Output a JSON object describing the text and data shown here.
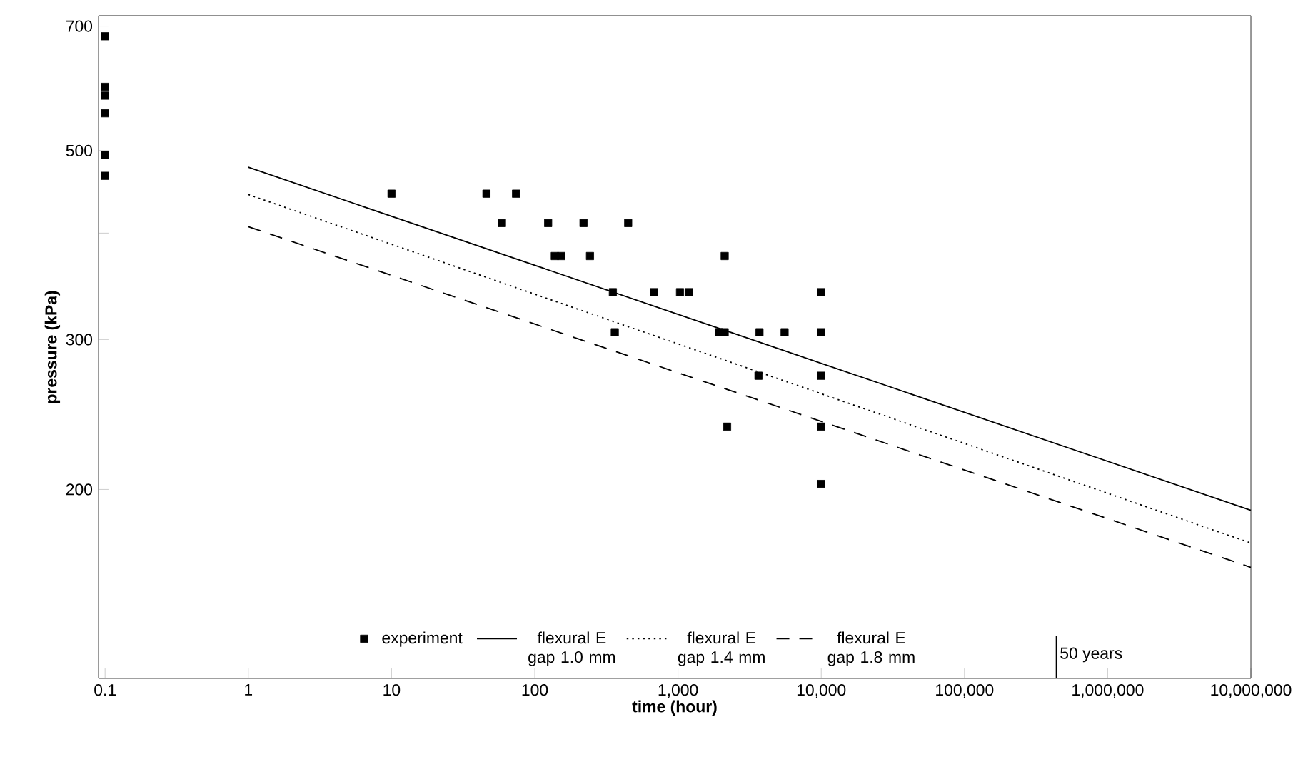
{
  "chart_data": {
    "type": "scatter",
    "xlabel": "time (hour)",
    "ylabel": "pressure (kPa)",
    "log": "xy",
    "xlim": [
      0.09,
      10000000
    ],
    "ylim": [
      120,
      720
    ],
    "xticks": [
      0.1,
      1,
      10,
      100,
      {
        "value": 1000,
        "label": "1,000"
      },
      {
        "value": 10000,
        "label": "10,000"
      },
      {
        "value": 100000,
        "label": "100,000"
      },
      {
        "value": 1000000,
        "label": "1,000,000"
      },
      {
        "value": 10000000,
        "label": "10,000,000"
      }
    ],
    "yticks": [
      200,
      300,
      {
        "value": 400,
        "label": null
      },
      500,
      700
    ],
    "legend": "bottom",
    "grid": false,
    "ref_lines": [
      {
        "axis": "x",
        "value": 438000,
        "label": "50 years"
      }
    ],
    "series": [
      {
        "name": "experiment",
        "marker": "square",
        "color": "#000000",
        "x": [
          0.1,
          0.1,
          0.1,
          0.1,
          0.1,
          0.1,
          10,
          46,
          74,
          59,
          124,
          219,
          449,
          138,
          153,
          243,
          2118,
          351,
          679,
          1033,
          1194,
          10000,
          362,
          1932,
          2118,
          3707,
          5550,
          10000,
          3648,
          10000,
          2203,
          10000,
          10000
        ],
        "values": [
          681,
          594,
          580,
          553,
          494,
          467,
          445,
          445,
          445,
          411,
          411,
          411,
          411,
          376,
          376,
          376,
          376,
          341,
          341,
          341,
          341,
          341,
          306,
          306,
          306,
          306,
          306,
          306,
          272,
          272,
          237,
          237,
          203
        ]
      },
      {
        "name": "flexural E gap 1.0 mm",
        "type": "line",
        "line_style": "solid",
        "color": "#000000",
        "x": [
          1,
          10000000
        ],
        "values": [
          478,
          189
        ]
      },
      {
        "name": "flexural E gap 1.4 mm",
        "type": "line",
        "line_style": "dotted",
        "color": "#000000",
        "x": [
          1,
          10000000
        ],
        "values": [
          444,
          173
        ]
      },
      {
        "name": "flexural E gap 1.8 mm",
        "type": "line",
        "line_style": "dashed",
        "color": "#000000",
        "x": [
          1,
          10000000
        ],
        "values": [
          407,
          162
        ]
      }
    ]
  }
}
